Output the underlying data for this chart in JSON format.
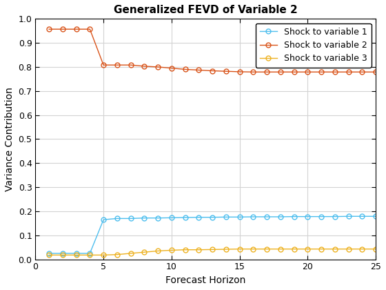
{
  "title": "Generalized FEVD of Variable 2",
  "xlabel": "Forecast Horizon",
  "ylabel": "Variance Contribution",
  "xlim": [
    0,
    25
  ],
  "ylim": [
    0,
    1.0
  ],
  "yticks": [
    0.0,
    0.1,
    0.2,
    0.3,
    0.4,
    0.5,
    0.6,
    0.7,
    0.8,
    0.9,
    1.0
  ],
  "xticks": [
    0,
    5,
    10,
    15,
    20,
    25
  ],
  "colors": {
    "var1": "#4DBEEE",
    "var2": "#D95319",
    "var3": "#EDB120"
  },
  "series": {
    "var1": {
      "x": [
        1,
        2,
        3,
        4,
        5,
        6,
        7,
        8,
        9,
        10,
        11,
        12,
        13,
        14,
        15,
        16,
        17,
        18,
        19,
        20,
        21,
        22,
        23,
        24,
        25
      ],
      "y": [
        0.025,
        0.025,
        0.025,
        0.025,
        0.165,
        0.17,
        0.17,
        0.172,
        0.172,
        0.173,
        0.174,
        0.175,
        0.175,
        0.176,
        0.176,
        0.177,
        0.177,
        0.177,
        0.178,
        0.178,
        0.178,
        0.178,
        0.179,
        0.179,
        0.179
      ]
    },
    "var2": {
      "x": [
        1,
        2,
        3,
        4,
        5,
        6,
        7,
        8,
        9,
        10,
        11,
        12,
        13,
        14,
        15,
        16,
        17,
        18,
        19,
        20,
        21,
        22,
        23,
        24,
        25
      ],
      "y": [
        0.957,
        0.957,
        0.957,
        0.957,
        0.808,
        0.808,
        0.808,
        0.803,
        0.8,
        0.795,
        0.79,
        0.787,
        0.784,
        0.782,
        0.78,
        0.779,
        0.779,
        0.779,
        0.779,
        0.779,
        0.779,
        0.779,
        0.779,
        0.779,
        0.779
      ]
    },
    "var3": {
      "x": [
        1,
        2,
        3,
        4,
        5,
        6,
        7,
        8,
        9,
        10,
        11,
        12,
        13,
        14,
        15,
        16,
        17,
        18,
        19,
        20,
        21,
        22,
        23,
        24,
        25
      ],
      "y": [
        0.018,
        0.018,
        0.018,
        0.018,
        0.018,
        0.02,
        0.025,
        0.03,
        0.035,
        0.038,
        0.04,
        0.04,
        0.041,
        0.042,
        0.043,
        0.043,
        0.043,
        0.043,
        0.043,
        0.043,
        0.043,
        0.043,
        0.043,
        0.043,
        0.043
      ]
    }
  },
  "legend": [
    "Shock to variable 1",
    "Shock to variable 2",
    "Shock to variable 3"
  ],
  "background_color": "#ffffff",
  "grid_color": "#d3d3d3",
  "title_fontsize": 11,
  "label_fontsize": 10,
  "tick_fontsize": 9,
  "legend_fontsize": 9,
  "linewidth": 1.0,
  "markersize": 5
}
